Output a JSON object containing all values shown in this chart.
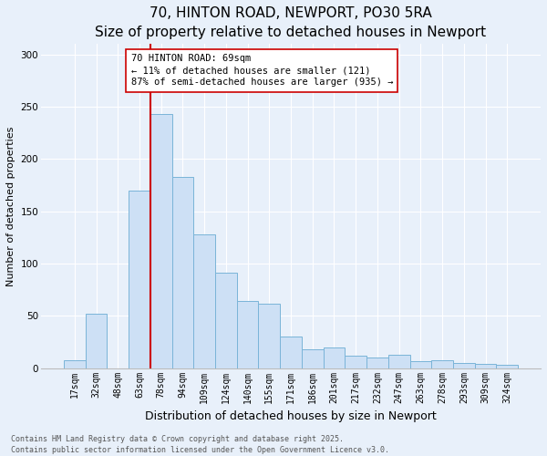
{
  "title": "70, HINTON ROAD, NEWPORT, PO30 5RA",
  "subtitle": "Size of property relative to detached houses in Newport",
  "xlabel": "Distribution of detached houses by size in Newport",
  "ylabel": "Number of detached properties",
  "categories": [
    "17sqm",
    "32sqm",
    "48sqm",
    "63sqm",
    "78sqm",
    "94sqm",
    "109sqm",
    "124sqm",
    "140sqm",
    "155sqm",
    "171sqm",
    "186sqm",
    "201sqm",
    "217sqm",
    "232sqm",
    "247sqm",
    "263sqm",
    "278sqm",
    "293sqm",
    "309sqm",
    "324sqm"
  ],
  "values": [
    8,
    52,
    0,
    170,
    243,
    183,
    128,
    91,
    64,
    62,
    30,
    18,
    20,
    12,
    10,
    13,
    7,
    8,
    5,
    4,
    3
  ],
  "bar_color": "#cde0f5",
  "bar_edge_color": "#7ab4d8",
  "vline_x_index": 3.5,
  "vline_color": "#cc0000",
  "annotation_text": "70 HINTON ROAD: 69sqm\n← 11% of detached houses are smaller (121)\n87% of semi-detached houses are larger (935) →",
  "annotation_box_color": "#ffffff",
  "annotation_box_edge": "#cc0000",
  "annotation_fontsize": 7.5,
  "footer_text": "Contains HM Land Registry data © Crown copyright and database right 2025.\nContains public sector information licensed under the Open Government Licence v3.0.",
  "ylim": [
    0,
    310
  ],
  "title_fontsize": 11,
  "subtitle_fontsize": 9.5,
  "ylabel_fontsize": 8,
  "xlabel_fontsize": 9,
  "bg_color": "#e8f0fa",
  "plot_bg_color": "#e8f0fa",
  "grid_color": "#ffffff",
  "tick_fontsize": 7,
  "ytick_fontsize": 7.5
}
